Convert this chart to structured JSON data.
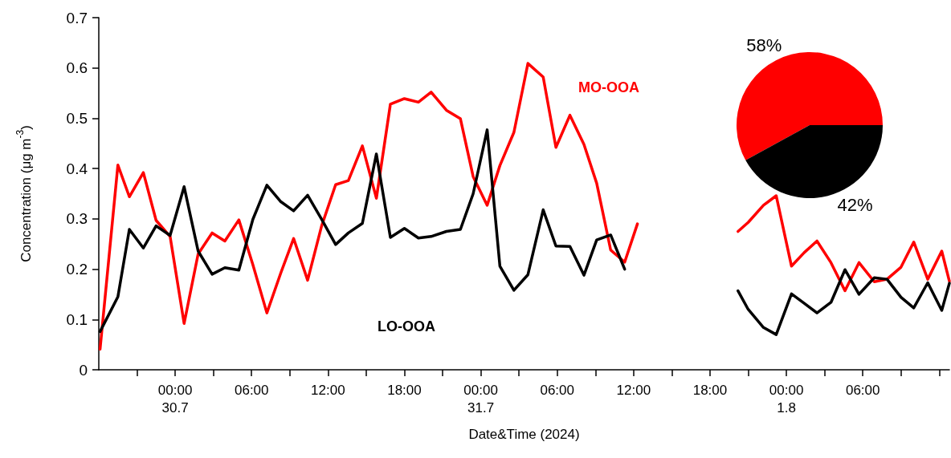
{
  "chart_data": [
    {
      "type": "line",
      "xlabel": "Date&Time (2024)",
      "ylabel": "Concentration (μg m$^{-3}$)",
      "xlim": [
        "2024-07-29T18:00",
        "2024-08-01T12:48"
      ],
      "ylim": [
        0,
        0.7
      ],
      "yticks": [
        0,
        0.1,
        0.2,
        0.3,
        0.4,
        0.5,
        0.6,
        0.7
      ],
      "xticks": [
        {
          "value": "2024-07-29T21:00",
          "label": null
        },
        {
          "value": "2024-07-30T00:00",
          "label": "00:00\n30.7"
        },
        {
          "value": "2024-07-30T03:00",
          "label": null
        },
        {
          "value": "2024-07-30T06:00",
          "label": "06:00"
        },
        {
          "value": "2024-07-30T09:00",
          "label": null
        },
        {
          "value": "2024-07-30T12:00",
          "label": "12:00"
        },
        {
          "value": "2024-07-30T15:00",
          "label": null
        },
        {
          "value": "2024-07-30T18:00",
          "label": "18:00"
        },
        {
          "value": "2024-07-30T21:00",
          "label": null
        },
        {
          "value": "2024-07-31T00:00",
          "label": "00:00\n31.7"
        },
        {
          "value": "2024-07-31T03:00",
          "label": null
        },
        {
          "value": "2024-07-31T06:00",
          "label": "06:00"
        },
        {
          "value": "2024-07-31T09:00",
          "label": null
        },
        {
          "value": "2024-07-31T12:00",
          "label": "12:00"
        },
        {
          "value": "2024-07-31T15:00",
          "label": null
        },
        {
          "value": "2024-07-31T18:00",
          "label": "18:00"
        },
        {
          "value": "2024-07-31T21:00",
          "label": null
        },
        {
          "value": "2024-08-01T00:00",
          "label": "00:00\n1.8"
        },
        {
          "value": "2024-08-01T03:00",
          "label": null
        },
        {
          "value": "2024-08-01T06:00",
          "label": "06:00"
        },
        {
          "value": "2024-08-01T09:00",
          "label": null
        },
        {
          "value": "2024-08-01T12:00",
          "label": null
        }
      ],
      "x": [
        "2024-07-29T18:06",
        "2024-07-29T19:30",
        "2024-07-29T20:24",
        "2024-07-29T21:30",
        "2024-07-29T22:30",
        "2024-07-29T23:36",
        "2024-07-30T00:42",
        "2024-07-30T01:48",
        "2024-07-30T02:54",
        "2024-07-30T03:54",
        "2024-07-30T05:00",
        "2024-07-30T06:06",
        "2024-07-30T07:12",
        "2024-07-30T08:18",
        "2024-07-30T09:18",
        "2024-07-30T10:24",
        "2024-07-30T11:30",
        "2024-07-30T12:36",
        "2024-07-30T13:36",
        "2024-07-30T14:42",
        "2024-07-30T15:48",
        "2024-07-30T16:54",
        "2024-07-30T18:00",
        "2024-07-30T19:06",
        "2024-07-30T20:06",
        "2024-07-30T21:18",
        "2024-07-30T22:24",
        "2024-07-30T23:24",
        "2024-07-31T00:30",
        "2024-07-31T01:30",
        "2024-07-31T02:36",
        "2024-07-31T03:42",
        "2024-07-31T04:54",
        "2024-07-31T05:54",
        "2024-07-31T07:00",
        "2024-07-31T08:06",
        "2024-07-31T09:06",
        "2024-07-31T10:12",
        "2024-07-31T11:18",
        "2024-07-31T12:18",
        "2024-07-31T16:00",
        "2024-07-31T20:12",
        "2024-07-31T21:00",
        "2024-07-31T22:12",
        "2024-07-31T23:12",
        "2024-08-01T00:24",
        "2024-08-01T01:24",
        "2024-08-01T02:24",
        "2024-08-01T03:30",
        "2024-08-01T04:36",
        "2024-08-01T05:42",
        "2024-08-01T06:54",
        "2024-08-01T07:54",
        "2024-08-01T09:00",
        "2024-08-01T10:00",
        "2024-08-01T11:06",
        "2024-08-01T12:12",
        "2024-08-01T12:48"
      ],
      "marker": "none",
      "line_style": "solid",
      "legend": false,
      "grid": false,
      "series": [
        {
          "name": "MO-OOA",
          "color": "#ff0000",
          "values": [
            0.041,
            0.407,
            0.344,
            0.392,
            0.297,
            0.265,
            0.092,
            0.23,
            0.272,
            0.256,
            0.298,
            0.209,
            0.113,
            0.193,
            0.261,
            0.178,
            0.286,
            0.368,
            0.376,
            0.445,
            0.341,
            0.528,
            0.539,
            0.532,
            0.552,
            0.516,
            0.499,
            0.384,
            0.327,
            0.406,
            0.472,
            0.609,
            0.582,
            0.442,
            0.506,
            0.448,
            0.371,
            0.238,
            0.214,
            0.29,
            null,
            0.275,
            0.293,
            0.327,
            0.346,
            0.206,
            0.233,
            0.256,
            0.213,
            0.157,
            0.213,
            0.175,
            0.18,
            0.204,
            0.254,
            0.18,
            0.236,
            0.176
          ]
        },
        {
          "name": "LO-OOA",
          "color": "#000000",
          "values": [
            0.076,
            0.145,
            0.279,
            0.242,
            0.286,
            0.267,
            0.364,
            0.236,
            0.19,
            0.203,
            0.198,
            0.299,
            0.367,
            0.334,
            0.316,
            0.347,
            0.299,
            0.249,
            0.272,
            0.291,
            0.429,
            0.263,
            0.281,
            0.262,
            0.265,
            0.275,
            0.279,
            0.35,
            0.477,
            0.206,
            0.158,
            0.189,
            0.318,
            0.246,
            0.245,
            0.188,
            0.258,
            0.268,
            0.2,
            null,
            null,
            0.157,
            0.12,
            0.084,
            0.07,
            0.151,
            0.132,
            0.113,
            0.134,
            0.199,
            0.15,
            0.183,
            0.18,
            0.144,
            0.123,
            0.173,
            0.118,
            0.172
          ]
        }
      ]
    },
    {
      "type": "pie",
      "categories": [
        null,
        null
      ],
      "values": [
        58,
        42
      ],
      "colors": [
        "#ff0000",
        "#000000"
      ],
      "value_labels": [
        "58%",
        "42%"
      ]
    }
  ]
}
